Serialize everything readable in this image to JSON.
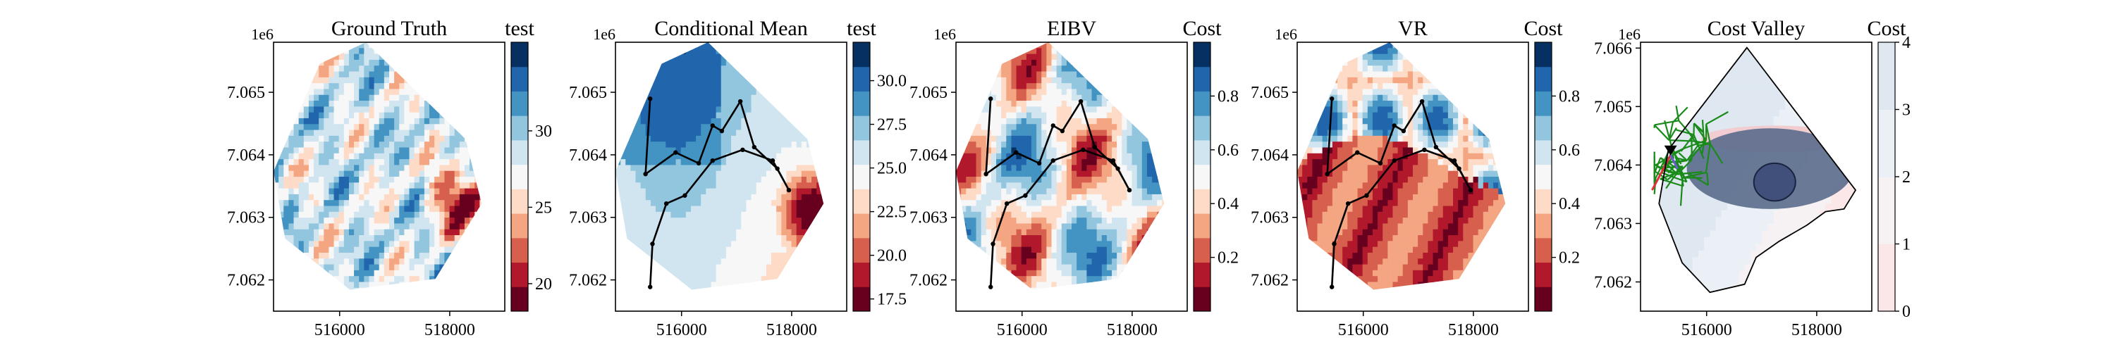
{
  "figure": {
    "panel_count": 5
  },
  "chart_data": [
    {
      "type": "heatmap",
      "title": "Ground Truth",
      "offset_label": "1e6",
      "xticks": [
        516000,
        518000
      ],
      "yticks": [
        7.062,
        7.063,
        7.064,
        7.065
      ],
      "xlim": [
        514800,
        519000
      ],
      "ylim": [
        7.0615,
        7.0658
      ],
      "colorbar": {
        "label": "test",
        "ticks": [
          20,
          25,
          30
        ],
        "range": [
          18.2,
          35.8
        ],
        "colormap": "RdBu"
      },
      "overlays": []
    },
    {
      "type": "heatmap",
      "title": "Conditional Mean",
      "offset_label": "1e6",
      "xticks": [
        516000,
        518000
      ],
      "yticks": [
        7.062,
        7.063,
        7.064,
        7.065
      ],
      "xlim": [
        514800,
        519000
      ],
      "ylim": [
        7.0615,
        7.0658
      ],
      "colorbar": {
        "label": "test",
        "ticks": [
          17.5,
          20.0,
          22.5,
          25.0,
          27.5,
          30.0
        ],
        "range": [
          16.8,
          32.2
        ],
        "colormap": "RdBu"
      },
      "overlays": [
        "path"
      ]
    },
    {
      "type": "heatmap",
      "title": "EIBV",
      "offset_label": "1e6",
      "xticks": [
        516000,
        518000
      ],
      "yticks": [
        7.062,
        7.063,
        7.064,
        7.065
      ],
      "xlim": [
        514800,
        519000
      ],
      "ylim": [
        7.0615,
        7.0658
      ],
      "colorbar": {
        "label": "Cost",
        "ticks": [
          0.2,
          0.4,
          0.6,
          0.8
        ],
        "range": [
          0.0,
          1.0
        ],
        "colormap": "RdBu"
      },
      "overlays": [
        "path"
      ]
    },
    {
      "type": "heatmap",
      "title": "VR",
      "offset_label": "1e6",
      "xticks": [
        516000,
        518000
      ],
      "yticks": [
        7.062,
        7.063,
        7.064,
        7.065
      ],
      "xlim": [
        514800,
        519000
      ],
      "ylim": [
        7.0615,
        7.0658
      ],
      "colorbar": {
        "label": "Cost",
        "ticks": [
          0.2,
          0.4,
          0.6,
          0.8
        ],
        "range": [
          0.0,
          1.0
        ],
        "colormap": "RdBu"
      },
      "overlays": [
        "path"
      ]
    },
    {
      "type": "heatmap",
      "title": "Cost Valley",
      "offset_label": "1e6",
      "xticks": [
        516000,
        518000
      ],
      "yticks": [
        7.062,
        7.063,
        7.064,
        7.065,
        7.066
      ],
      "xlim": [
        514800,
        519000
      ],
      "ylim": [
        7.0615,
        7.0661
      ],
      "colorbar": {
        "label": "Cost",
        "ticks": [
          0,
          1,
          2,
          3,
          4
        ],
        "range": [
          0,
          4
        ],
        "colormap": "Reds-light"
      },
      "overlays": [
        "tree",
        "valley"
      ]
    }
  ],
  "colors": {
    "dark_red": "#67001f",
    "red": "#b2182b",
    "light_red": "#d6604d",
    "salmon": "#f4a582",
    "pink": "#fddbc7",
    "near_white": "#f7f7f7",
    "pale_blue": "#d1e5f0",
    "light_blue": "#92c5de",
    "mid_blue": "#4393c3",
    "blue": "#2166ac",
    "navy": "#053061",
    "tree_green": "#1a8a1a",
    "valley_grey": "#5a6b8c",
    "path_black": "#000000"
  }
}
